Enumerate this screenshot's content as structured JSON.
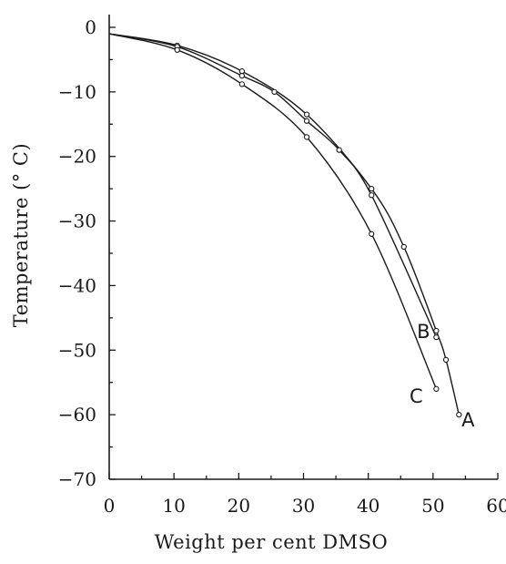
{
  "chart_data": {
    "type": "line",
    "xlabel": "Weight per cent DMSO",
    "ylabel": "Temperature (° C)",
    "xlim": [
      0,
      60
    ],
    "ylim": [
      -70,
      0
    ],
    "x_ticks": [
      0,
      10,
      20,
      30,
      40,
      50,
      60
    ],
    "x_tick_labels": [
      "0",
      "10",
      "20",
      "30",
      "40",
      "50",
      "60"
    ],
    "y_ticks": [
      0,
      -10,
      -20,
      -30,
      -40,
      -50,
      -60,
      -70
    ],
    "y_tick_labels": [
      "0",
      "−10",
      "−20",
      "−30",
      "−40",
      "−50",
      "−60",
      "−70"
    ],
    "grid": false,
    "series": [
      {
        "name": "A",
        "x": [
          0,
          10.5,
          20.5,
          30.5,
          40.5,
          45.5,
          50.5,
          52,
          54
        ],
        "y": [
          -1,
          -2.8,
          -6.8,
          -13.5,
          -25,
          -34,
          -47,
          -51.5,
          -60
        ]
      },
      {
        "name": "B",
        "x": [
          0,
          10.5,
          20.5,
          25.5,
          30.5,
          35.5,
          40.5,
          50.5
        ],
        "y": [
          -1,
          -3,
          -7.5,
          -10,
          -14.5,
          -19,
          -26,
          -48
        ]
      },
      {
        "name": "C",
        "x": [
          0,
          10.5,
          20.5,
          30.5,
          40.5,
          50.5
        ],
        "y": [
          -1,
          -3.5,
          -8.8,
          -17,
          -32,
          -56
        ]
      }
    ]
  }
}
